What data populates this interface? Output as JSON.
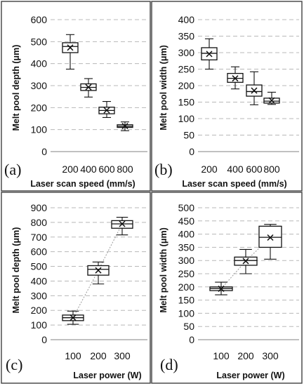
{
  "chart_data": [
    {
      "type": "box",
      "panel_label": "(a)",
      "xlabel": "Laser scan speed (mm/s)",
      "ylabel": "Melt pool depth (μm)",
      "categories": [
        "200",
        "400",
        "600",
        "800"
      ],
      "ylim": [
        0,
        600
      ],
      "yticks": [
        "0",
        "100",
        "200",
        "300",
        "400",
        "500",
        "600"
      ],
      "grid": true,
      "trendline": false,
      "boxes": [
        {
          "min": 375,
          "q1": 450,
          "median": 478,
          "q3": 495,
          "max": 532,
          "mean": 473
        },
        {
          "min": 248,
          "q1": 278,
          "median": 292,
          "q3": 308,
          "max": 332,
          "mean": 293
        },
        {
          "min": 155,
          "q1": 172,
          "median": 187,
          "q3": 202,
          "max": 228,
          "mean": 188
        },
        {
          "min": 95,
          "q1": 110,
          "median": 115,
          "q3": 122,
          "max": 135,
          "mean": 116
        }
      ]
    },
    {
      "type": "box",
      "panel_label": "(b)",
      "xlabel": "Laser scan speed (mm/s)",
      "ylabel": "Melt pool width (μm)",
      "categories": [
        "200",
        "400",
        "600",
        "800"
      ],
      "ylim": [
        0,
        400
      ],
      "yticks": [
        "0",
        "50",
        "100",
        "150",
        "200",
        "250",
        "300",
        "350",
        "400"
      ],
      "grid": true,
      "trendline": false,
      "boxes": [
        {
          "min": 250,
          "q1": 278,
          "median": 298,
          "q3": 315,
          "max": 342,
          "mean": 296
        },
        {
          "min": 190,
          "q1": 210,
          "median": 222,
          "q3": 237,
          "max": 257,
          "mean": 222
        },
        {
          "min": 142,
          "q1": 168,
          "median": 182,
          "q3": 202,
          "max": 242,
          "mean": 185
        },
        {
          "min": 143,
          "q1": 147,
          "median": 153,
          "q3": 162,
          "max": 180,
          "mean": 155
        }
      ]
    },
    {
      "type": "box",
      "panel_label": "(c)",
      "xlabel": "Laser power (W)",
      "ylabel": "Melt pool depth (μm)",
      "categories": [
        "100",
        "200",
        "300"
      ],
      "ylim": [
        0,
        900
      ],
      "yticks": [
        "0",
        "100",
        "200",
        "300",
        "400",
        "500",
        "600",
        "700",
        "800",
        "900"
      ],
      "grid": true,
      "trendline": true,
      "boxes": [
        {
          "min": 105,
          "q1": 130,
          "median": 150,
          "q3": 168,
          "max": 195,
          "mean": 150
        },
        {
          "min": 380,
          "q1": 440,
          "median": 480,
          "q3": 505,
          "max": 530,
          "mean": 473
        },
        {
          "min": 715,
          "q1": 760,
          "median": 790,
          "q3": 812,
          "max": 835,
          "mean": 790
        }
      ]
    },
    {
      "type": "box",
      "panel_label": "(d)",
      "xlabel": "Laser power (W)",
      "ylabel": "Melt pool width (μm)",
      "categories": [
        "100",
        "200",
        "300"
      ],
      "ylim": [
        0,
        500
      ],
      "yticks": [
        "0",
        "50",
        "100",
        "150",
        "200",
        "250",
        "300",
        "350",
        "400",
        "450",
        "500"
      ],
      "grid": true,
      "trendline": true,
      "boxes": [
        {
          "min": 170,
          "q1": 186,
          "median": 194,
          "q3": 200,
          "max": 218,
          "mean": 193
        },
        {
          "min": 250,
          "q1": 282,
          "median": 300,
          "q3": 313,
          "max": 342,
          "mean": 298
        },
        {
          "min": 305,
          "q1": 350,
          "median": 388,
          "q3": 430,
          "max": 437,
          "mean": 387
        }
      ]
    }
  ]
}
